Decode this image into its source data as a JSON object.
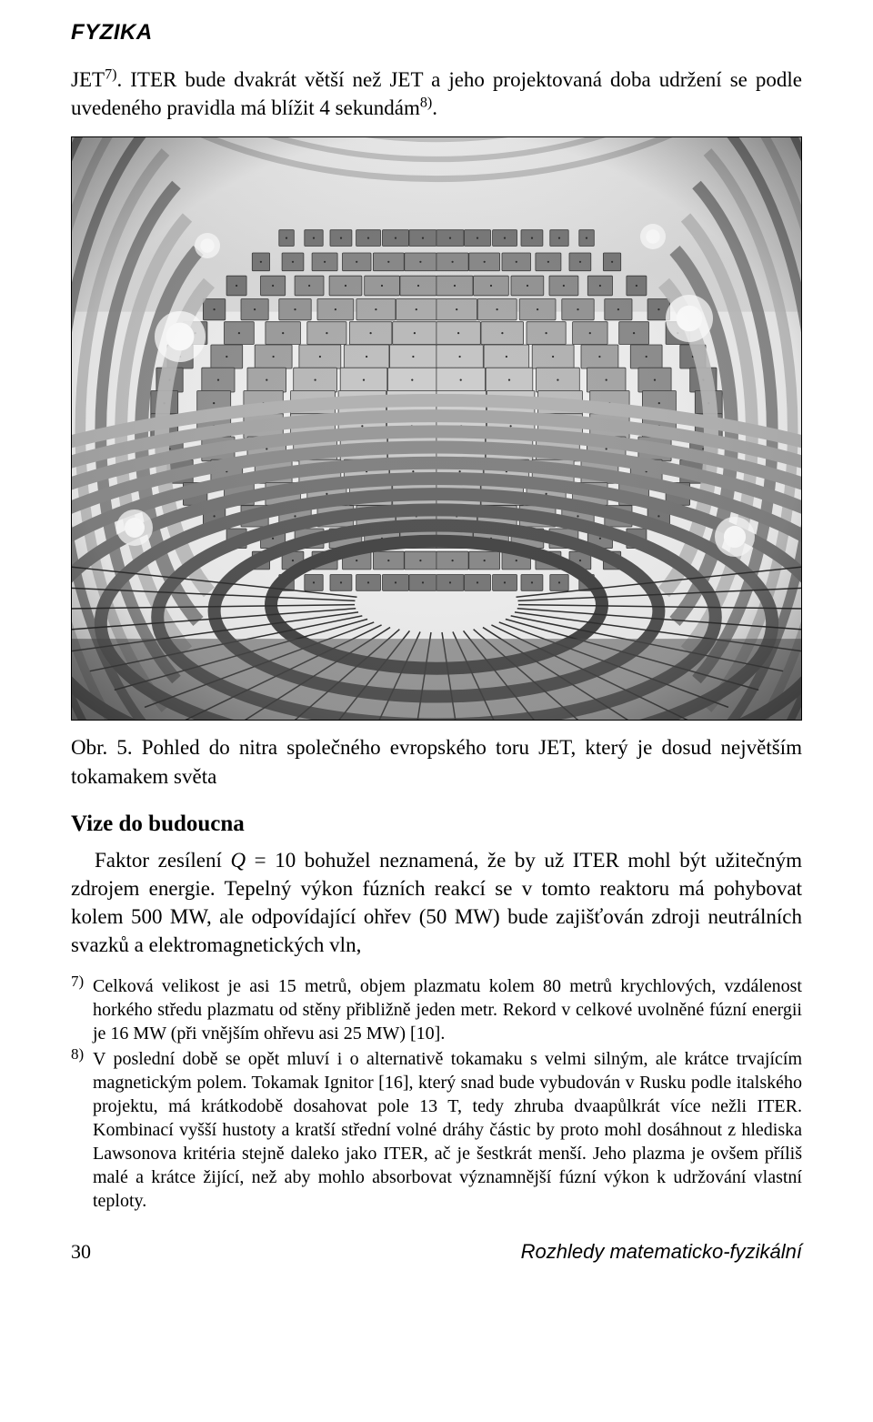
{
  "header": {
    "kicker": "FYZIKA"
  },
  "intro": {
    "text_a": "JET",
    "sup_a": "7)",
    "text_b": ". ITER bude dvakrát větší než JET a jeho projektovaná doba udržení se podle uvedeného pravidla má blížit 4 sekundám",
    "sup_b": "8)",
    "text_c": "."
  },
  "figure": {
    "caption": "Obr. 5. Pohled do nitra společného evropského toru JET, který je dosud největším tokamakem světa",
    "svg": {
      "bg": "#eeeeee",
      "tile_light": "#bababa",
      "tile_dark": "#808080",
      "floor": "#555555",
      "highlight": "#ffffff",
      "columns": 12,
      "rows": 16,
      "viewbox_w": 804,
      "viewbox_h": 642
    }
  },
  "section": {
    "heading": "Vize do budoucna"
  },
  "body": {
    "p1_a": "Faktor zesílení ",
    "p1_q": "Q",
    "p1_b": " = 10 bohužel neznamená, že by už ITER mohl být užitečným zdrojem energie. Tepelný výkon fúzních reakcí se v tomto reaktoru má pohybovat kolem 500 MW, ale odpovídající ohřev (50 MW) bude zajišťován zdroji neutrálních svazků a elektromagnetických vln,"
  },
  "footnotes": {
    "fn7_mark": "7)",
    "fn7": "Celková velikost je asi 15 metrů, objem plazmatu kolem 80 metrů krychlových, vzdálenost horkého středu plazmatu od stěny přibližně jeden metr. Rekord v celkové uvolněné fúzní energii je 16 MW (při vnějším ohřevu asi 25 MW) [10].",
    "fn8_mark": "8)",
    "fn8": "V poslední době se opět mluví i o alternativě tokamaku s velmi silným, ale krátce trvajícím magnetickým polem. Tokamak Ignitor [16], který snad bude vybudován v Rusku podle italského projektu, má krátkodobě dosahovat pole 13 T, tedy zhruba dvaapůlkrát více nežli ITER. Kombinací vyšší hustoty a kratší střední volné dráhy částic by proto mohl dosáhnout z hlediska Lawsonova kritéria stejně daleko jako ITER, ač je šestkrát menší. Jeho plazma je ovšem příliš malé a krátce žijící, než aby mohlo absorbovat významnější fúzní výkon k udržování vlastní teploty."
  },
  "footer": {
    "page": "30",
    "journal": "Rozhledy matematicko-fyzikální"
  }
}
